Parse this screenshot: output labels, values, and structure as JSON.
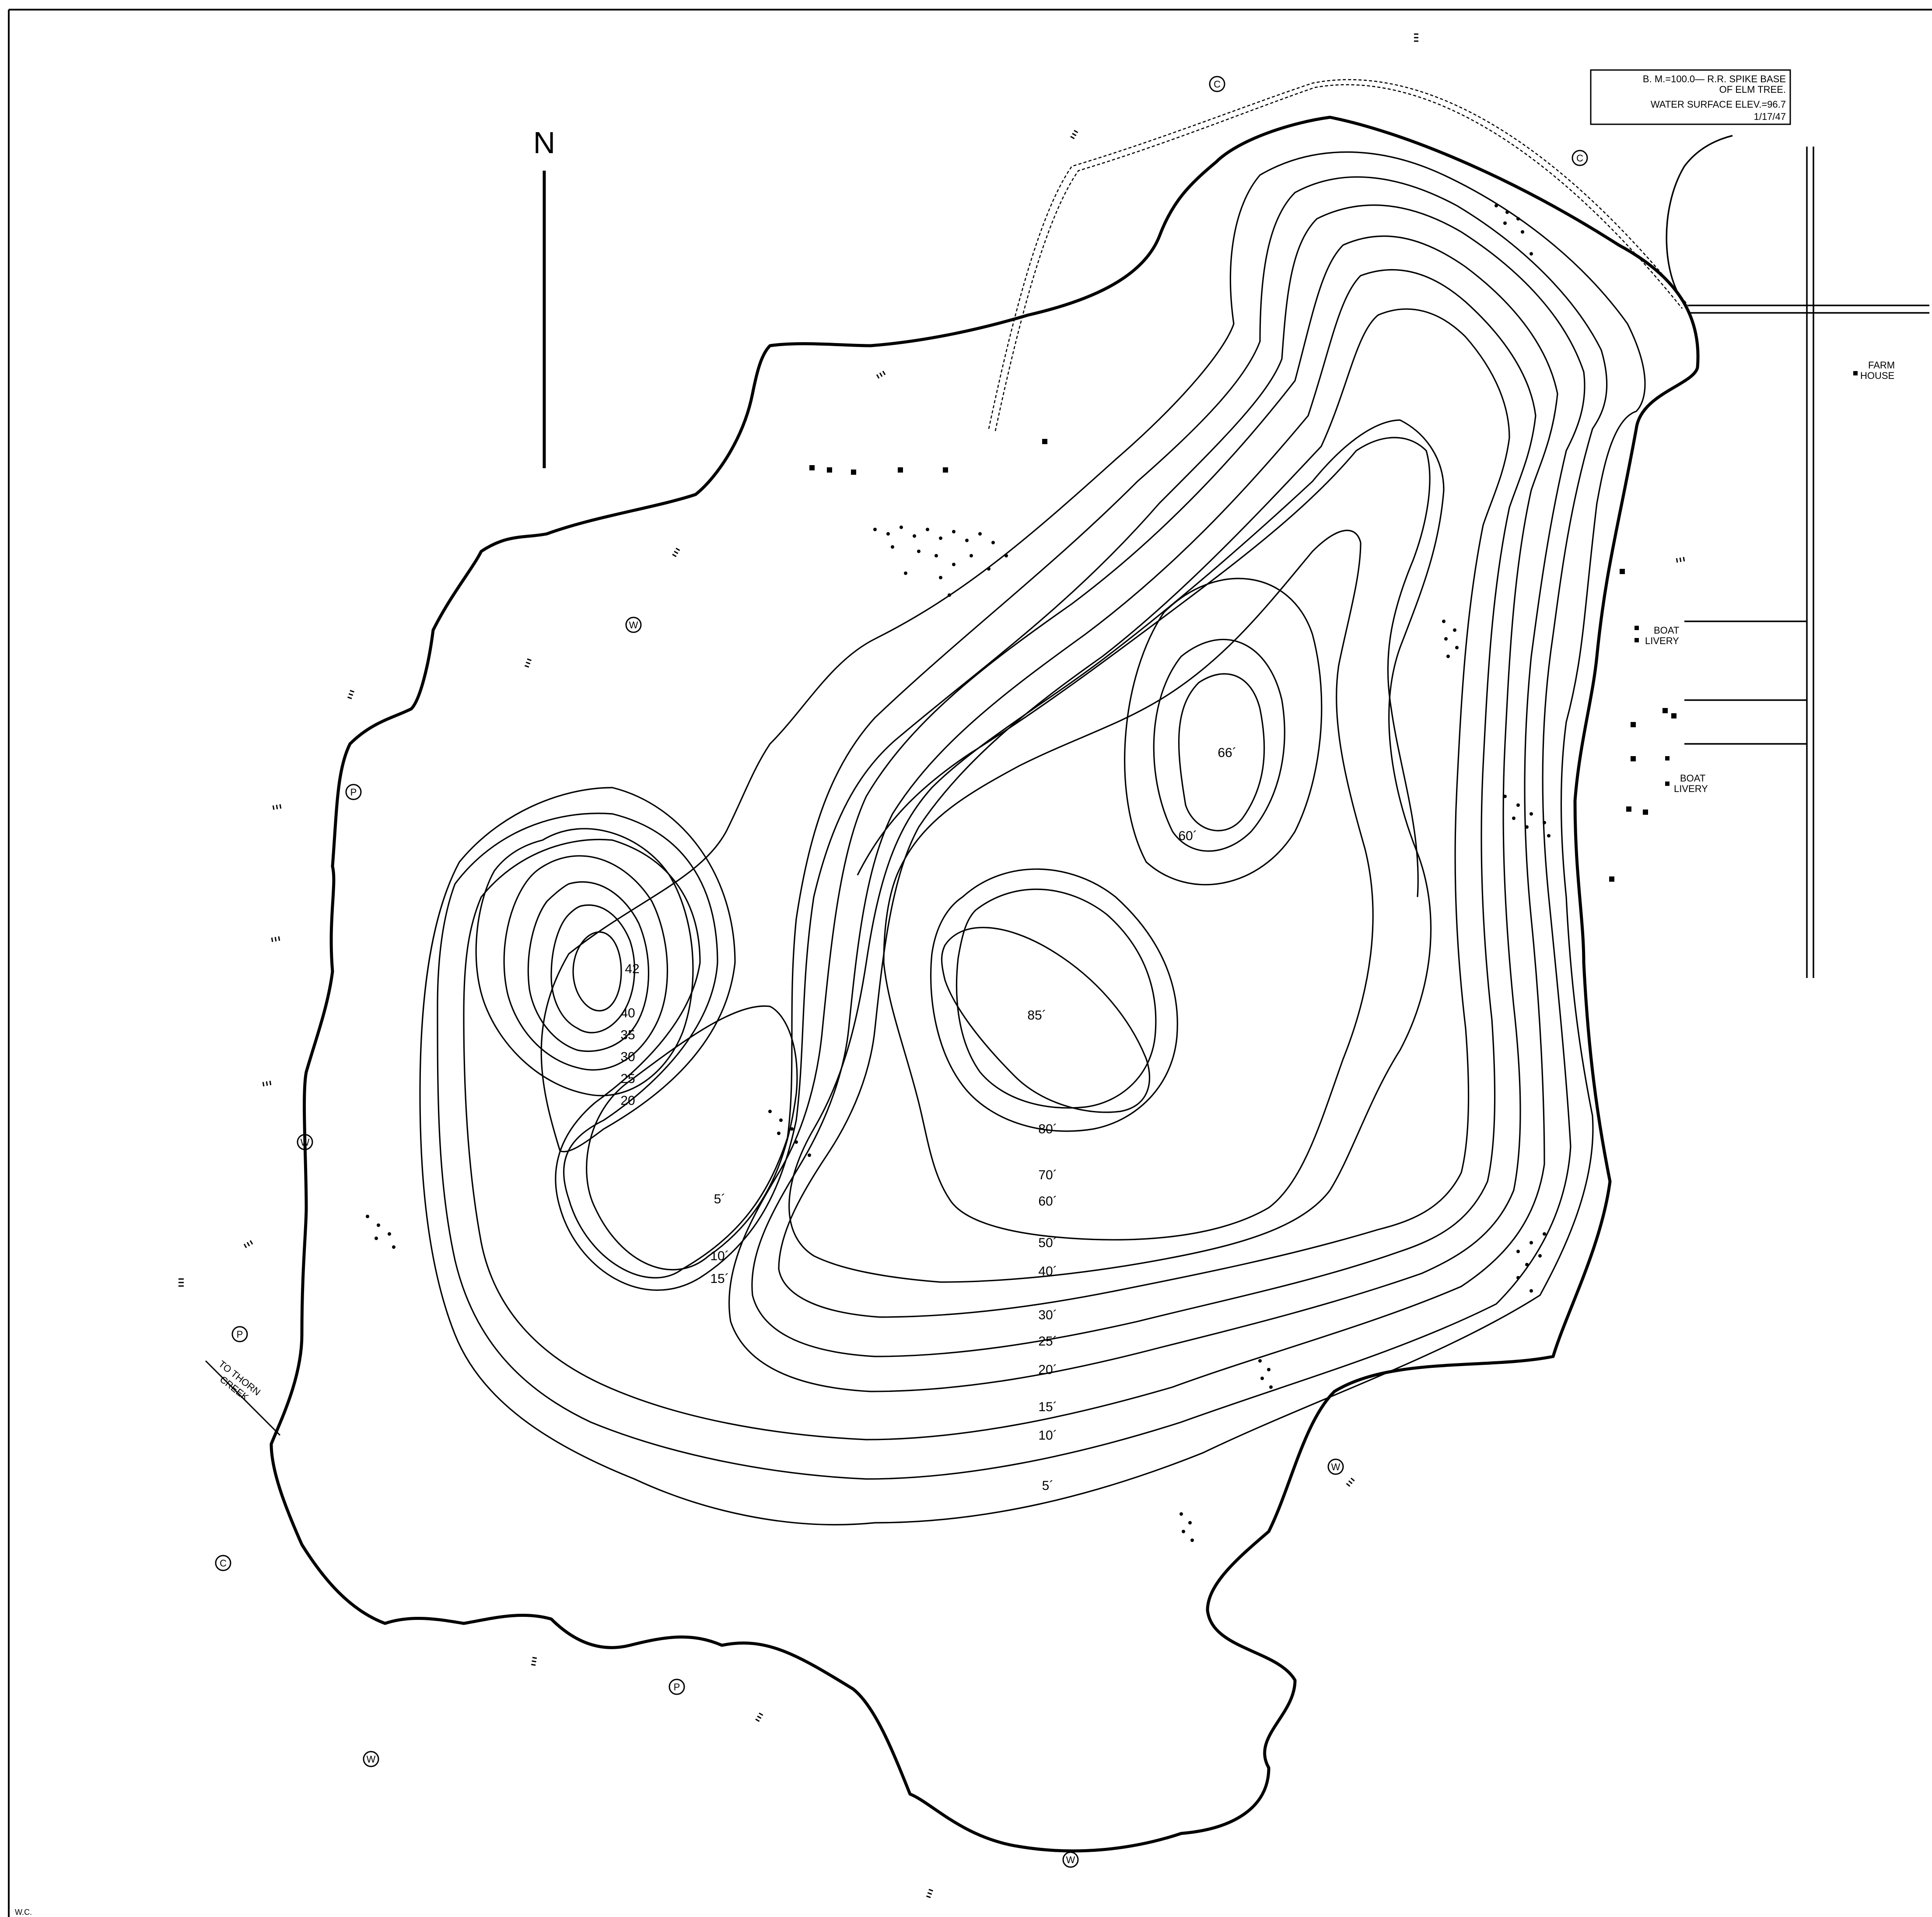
{
  "north_label": "N",
  "benchmark": {
    "line1": "B. M.=100.0— R.R. SPIKE BASE",
    "line2": "OF ELM TREE.",
    "line3": "WATER SURFACE ELEV.=96.7",
    "line4": "1/17/47"
  },
  "places": {
    "farm_line1": "FARM",
    "farm_line2": "HOUSE",
    "boat_livery_1_line1": "BOAT",
    "boat_livery_1_line2": "LIVERY",
    "boat_livery_2_line1": "BOAT",
    "boat_livery_2_line2": "LIVERY",
    "creek_line1": "TO THORN",
    "creek_line2": "CREEK"
  },
  "corner_mark": "W.C.",
  "depth_labels": {
    "d42": "42",
    "d40": "40",
    "d35": "35",
    "d30a": "30",
    "d25a": "25",
    "d20a": "20",
    "d66": "66´",
    "d60a": "60´",
    "d85": "85´",
    "d80": "80´",
    "d70": "70´",
    "d60b": "60´",
    "d50": "50´",
    "d40b": "40´",
    "d30b": "30´",
    "d25b": "25´",
    "d20b": "20´",
    "d15a": "15´",
    "d10a": "10´",
    "d5a": "5´",
    "d5b": "5´",
    "d10b": "10´",
    "d15b": "15´"
  },
  "symbols": {
    "weed_letter": "W",
    "pondweed_letter": "P",
    "chara_letter": "C"
  }
}
